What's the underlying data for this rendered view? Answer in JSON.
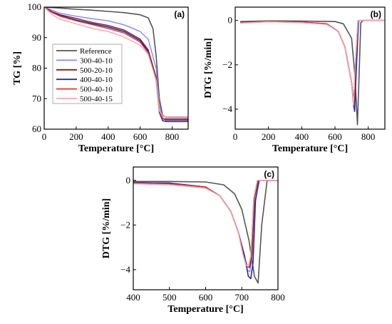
{
  "colors": {
    "Reference": "#555555",
    "300-40-10": "#8888ee",
    "500-20-10": "#7a1f1f",
    "400-40-10": "#2a2aa0",
    "500-40-10": "#dd3333",
    "500-40-15": "#f4a8a8"
  },
  "chart_data": [
    {
      "id": "a",
      "panel_label": "(a)",
      "type": "line",
      "xlabel": "Temperature [°C]",
      "ylabel": "TG [%]",
      "xlim": [
        0,
        900
      ],
      "ylim": [
        60,
        100
      ],
      "xticks": [
        0,
        200,
        400,
        600,
        800
      ],
      "yticks": [
        60,
        70,
        80,
        90,
        100
      ],
      "legend_position": "center-left",
      "series": [
        {
          "name": "Reference",
          "x": [
            0,
            100,
            200,
            300,
            400,
            500,
            600,
            650,
            680,
            700,
            720,
            740,
            760,
            900
          ],
          "y": [
            100,
            99.7,
            99.3,
            99,
            98.6,
            98.2,
            97.5,
            96.5,
            93,
            84,
            70,
            64.5,
            64,
            64
          ]
        },
        {
          "name": "300-40-10",
          "x": [
            0,
            50,
            100,
            200,
            300,
            400,
            500,
            600,
            650,
            700,
            720,
            740,
            760,
            900
          ],
          "y": [
            100,
            99,
            98,
            97,
            96.2,
            95.5,
            94.2,
            92,
            89.5,
            80,
            68,
            63.5,
            63.5,
            63.5
          ]
        },
        {
          "name": "500-20-10",
          "x": [
            0,
            50,
            100,
            200,
            300,
            400,
            500,
            600,
            650,
            700,
            720,
            740,
            760,
            900
          ],
          "y": [
            100,
            98.5,
            97.5,
            96.3,
            95,
            94,
            92.5,
            89.5,
            86,
            77,
            66,
            63.5,
            63,
            63
          ]
        },
        {
          "name": "400-40-10",
          "x": [
            0,
            50,
            100,
            200,
            300,
            400,
            500,
            600,
            650,
            700,
            720,
            740,
            760,
            900
          ],
          "y": [
            100,
            98.3,
            97.2,
            95.8,
            94.6,
            93.5,
            92,
            89,
            85.5,
            76,
            65.5,
            62.8,
            62.5,
            62.5
          ]
        },
        {
          "name": "500-40-10",
          "x": [
            0,
            50,
            100,
            200,
            300,
            400,
            500,
            600,
            650,
            700,
            720,
            740,
            760,
            900
          ],
          "y": [
            100,
            98.2,
            97,
            95.5,
            94.3,
            93,
            91.5,
            88.5,
            85,
            76,
            66,
            63.5,
            63.3,
            63.3
          ]
        },
        {
          "name": "500-40-15",
          "x": [
            0,
            50,
            100,
            200,
            300,
            400,
            500,
            600,
            650,
            700,
            720,
            740,
            760,
            900
          ],
          "y": [
            100,
            97.5,
            96,
            94.5,
            93,
            92,
            90.2,
            87.5,
            84.5,
            76,
            66,
            64.3,
            64,
            64
          ]
        }
      ]
    },
    {
      "id": "b",
      "panel_label": "(b)",
      "type": "line",
      "xlabel": "Temperature [°C]",
      "ylabel": "DTG [%/min]",
      "xlim": [
        0,
        900
      ],
      "ylim": [
        -4.9,
        0.6
      ],
      "xticks": [
        0,
        200,
        400,
        600,
        800
      ],
      "yticks": [
        0,
        -2,
        -4
      ],
      "series": [
        {
          "name": "Reference",
          "x": [
            30,
            200,
            400,
            600,
            650,
            700,
            720,
            735,
            745,
            755,
            770,
            900
          ],
          "y": [
            -0.05,
            -0.02,
            -0.03,
            -0.05,
            -0.15,
            -0.8,
            -2.5,
            -4.7,
            -2.5,
            -0.1,
            0,
            0
          ]
        },
        {
          "name": "300-40-10",
          "x": [
            30,
            200,
            400,
            550,
            620,
            660,
            700,
            715,
            725,
            740,
            900
          ],
          "y": [
            -0.1,
            -0.05,
            -0.08,
            -0.15,
            -0.5,
            -1.2,
            -2.8,
            -4,
            -2,
            0,
            0
          ]
        },
        {
          "name": "500-20-10",
          "x": [
            30,
            200,
            400,
            550,
            620,
            660,
            700,
            715,
            725,
            740,
            900
          ],
          "y": [
            -0.1,
            -0.05,
            -0.08,
            -0.15,
            -0.5,
            -1.2,
            -2.8,
            -3.8,
            -2,
            0,
            0
          ]
        },
        {
          "name": "400-40-10",
          "x": [
            30,
            200,
            400,
            550,
            620,
            660,
            700,
            718,
            728,
            742,
            900
          ],
          "y": [
            -0.1,
            -0.06,
            -0.08,
            -0.15,
            -0.5,
            -1.2,
            -2.8,
            -4.1,
            -2.2,
            0,
            0
          ]
        },
        {
          "name": "500-40-10",
          "x": [
            30,
            200,
            400,
            550,
            620,
            660,
            700,
            712,
            722,
            738,
            900
          ],
          "y": [
            -0.1,
            -0.05,
            -0.08,
            -0.15,
            -0.5,
            -1.2,
            -2.8,
            -3.9,
            -2,
            0,
            0
          ]
        },
        {
          "name": "500-40-15",
          "x": [
            30,
            200,
            400,
            550,
            620,
            660,
            700,
            712,
            722,
            738,
            900
          ],
          "y": [
            -0.12,
            -0.06,
            -0.1,
            -0.18,
            -0.5,
            -1.2,
            -2.8,
            -3.8,
            -2,
            0,
            0
          ]
        }
      ]
    },
    {
      "id": "c",
      "panel_label": "(c)",
      "type": "line",
      "xlabel": "Temperature [°C]",
      "ylabel": "DTG [%/min]",
      "xlim": [
        400,
        800
      ],
      "ylim": [
        -4.9,
        0.6
      ],
      "xticks": [
        400,
        500,
        600,
        700,
        800
      ],
      "yticks": [
        0,
        -2,
        -4
      ],
      "series": [
        {
          "name": "Reference",
          "x": [
            400,
            500,
            600,
            650,
            680,
            700,
            720,
            735,
            745,
            755,
            770,
            800
          ],
          "y": [
            -0.05,
            -0.05,
            -0.07,
            -0.2,
            -0.6,
            -1.3,
            -2.7,
            -4.3,
            -4.6,
            -2,
            0,
            0
          ]
        },
        {
          "name": "300-40-10",
          "x": [
            400,
            500,
            600,
            640,
            670,
            690,
            705,
            715,
            722,
            728,
            735,
            745,
            800
          ],
          "y": [
            -0.1,
            -0.12,
            -0.3,
            -0.7,
            -1.4,
            -2.3,
            -3.3,
            -4,
            -4.1,
            -3.5,
            -0.8,
            0,
            0
          ]
        },
        {
          "name": "500-20-10",
          "x": [
            400,
            500,
            600,
            640,
            670,
            690,
            705,
            715,
            722,
            728,
            735,
            745,
            800
          ],
          "y": [
            -0.1,
            -0.12,
            -0.3,
            -0.7,
            -1.4,
            -2.3,
            -3.3,
            -3.85,
            -3.9,
            -3.3,
            -0.8,
            0,
            0
          ]
        },
        {
          "name": "400-40-10",
          "x": [
            400,
            500,
            600,
            640,
            670,
            690,
            708,
            718,
            725,
            731,
            738,
            748,
            800
          ],
          "y": [
            -0.1,
            -0.12,
            -0.3,
            -0.7,
            -1.4,
            -2.3,
            -3.4,
            -4.3,
            -4.4,
            -3.7,
            -0.9,
            0,
            0
          ]
        },
        {
          "name": "500-40-10",
          "x": [
            400,
            500,
            600,
            640,
            670,
            690,
            703,
            712,
            718,
            725,
            733,
            743,
            800
          ],
          "y": [
            -0.12,
            -0.15,
            -0.3,
            -0.7,
            -1.4,
            -2.3,
            -3.3,
            -3.8,
            -3.9,
            -3.4,
            -0.8,
            0,
            0
          ]
        },
        {
          "name": "500-40-15",
          "x": [
            400,
            500,
            600,
            640,
            670,
            690,
            703,
            712,
            718,
            725,
            733,
            743,
            800
          ],
          "y": [
            -0.15,
            -0.2,
            -0.35,
            -0.7,
            -1.4,
            -2.3,
            -3.3,
            -3.8,
            -3.85,
            -3.4,
            -0.8,
            0,
            0
          ]
        }
      ]
    }
  ]
}
